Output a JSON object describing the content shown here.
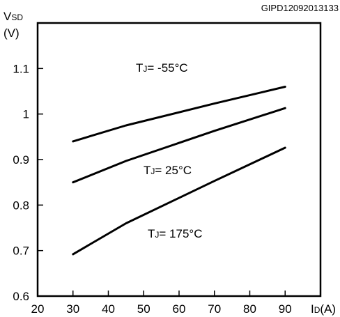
{
  "figure_id": "GIPD12092013133",
  "chart_data": {
    "type": "line",
    "ylabel": {
      "main": "V",
      "sub": "SD",
      "unit": "(V)"
    },
    "xlabel": {
      "main": "I",
      "sub": "D",
      "unit": "(A)"
    },
    "xlim": [
      20,
      100
    ],
    "ylim": [
      0.6,
      1.2
    ],
    "x_ticks": [
      20,
      30,
      40,
      50,
      60,
      70,
      80,
      90
    ],
    "y_ticks": [
      0.6,
      0.7,
      0.8,
      0.9,
      1,
      1.1
    ],
    "x_tick_labels": [
      "20",
      "30",
      "40",
      "50",
      "60",
      "70",
      "80",
      "90"
    ],
    "y_tick_labels": [
      "0.6",
      "0.7",
      "0.8",
      "0.9",
      "1",
      "1.1"
    ],
    "grid": false,
    "series": [
      {
        "name": "TJ= -55°C",
        "label_main": "T",
        "label_sub": "J",
        "label_rest": "= -55°C",
        "x": [
          30,
          45,
          70,
          90
        ],
        "y": [
          0.94,
          0.975,
          1.023,
          1.06
        ]
      },
      {
        "name": "TJ= 25°C",
        "label_main": "T",
        "label_sub": "J",
        "label_rest": "= 25°C",
        "x": [
          30,
          45,
          70,
          90
        ],
        "y": [
          0.85,
          0.897,
          0.963,
          1.013
        ]
      },
      {
        "name": "TJ= 175°C",
        "label_main": "T",
        "label_sub": "J",
        "label_rest": "= 175°C",
        "x": [
          30,
          45,
          70,
          90
        ],
        "y": [
          0.692,
          0.76,
          0.853,
          0.926
        ]
      }
    ]
  }
}
